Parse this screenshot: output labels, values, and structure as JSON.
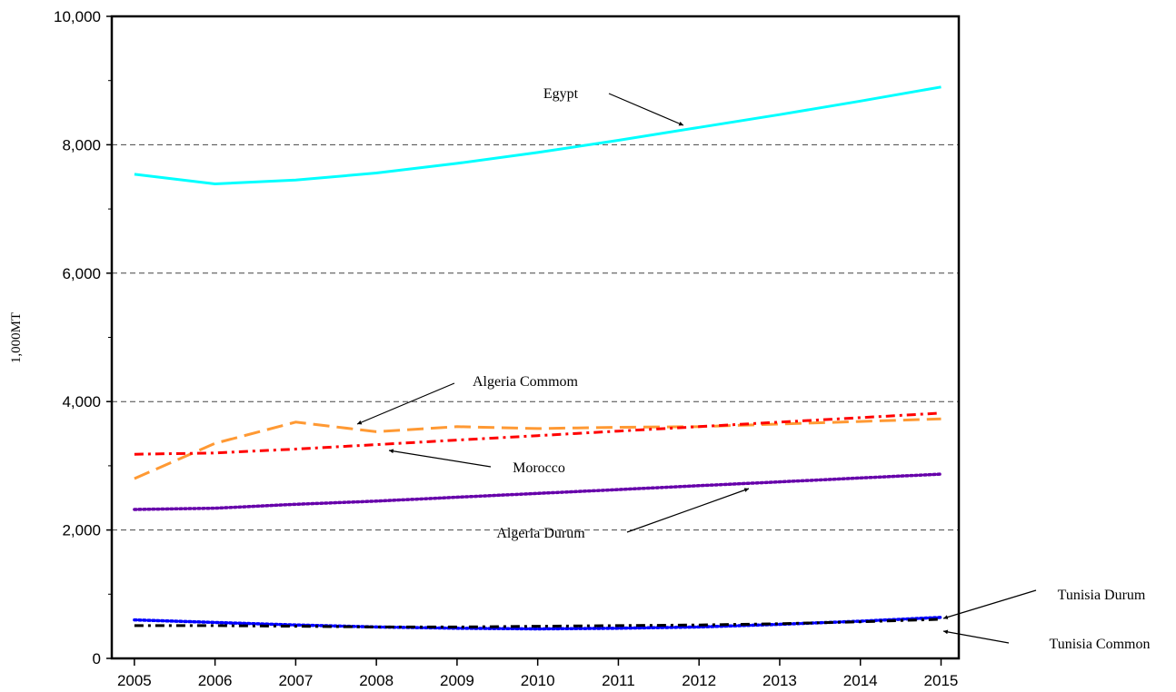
{
  "chart_data": {
    "type": "line",
    "y_label": "1,000MT",
    "x": [
      2005,
      2006,
      2007,
      2008,
      2009,
      2010,
      2011,
      2012,
      2013,
      2014,
      2015
    ],
    "xlim": [
      2004.72,
      2015.22
    ],
    "xticks": [
      2005,
      2006,
      2007,
      2008,
      2009,
      2010,
      2011,
      2012,
      2013,
      2014,
      2015
    ],
    "ylim": [
      0,
      10000
    ],
    "yticks": [
      0,
      {
        "value": 2000,
        "label": "2,000"
      },
      {
        "value": 4000,
        "label": "4,000"
      },
      {
        "value": 6000,
        "label": "6,000"
      },
      {
        "value": 8000,
        "label": "8,000"
      },
      {
        "value": 10000,
        "label": "10,000"
      }
    ],
    "yminorticks": [
      1000,
      3000,
      5000,
      7000,
      9000
    ],
    "grid": true,
    "series": [
      {
        "name": "Egypt",
        "color": "#00ffff",
        "style": "solid",
        "values": [
          7540,
          7390,
          7450,
          7560,
          7710,
          7880,
          8070,
          8270,
          8470,
          8680,
          8900
        ]
      },
      {
        "name": "Algeria Commom",
        "color": "#ff9933",
        "style": "dashed",
        "values": [
          2800,
          3350,
          3680,
          3530,
          3610,
          3580,
          3600,
          3610,
          3650,
          3690,
          3730
        ]
      },
      {
        "name": "Morocco",
        "color": "#ff0000",
        "style": "dashdot",
        "values": [
          3180,
          3200,
          3260,
          3330,
          3400,
          3470,
          3540,
          3610,
          3680,
          3750,
          3820
        ]
      },
      {
        "name": "Algeria Durum",
        "color": "#6600aa",
        "style": "dotted",
        "values": [
          2320,
          2340,
          2400,
          2450,
          2510,
          2570,
          2630,
          2690,
          2750,
          2810,
          2870
        ]
      },
      {
        "name": "Tunisia Durum",
        "color": "#0000ff",
        "style": "dotted",
        "values": [
          600,
          560,
          520,
          490,
          470,
          460,
          470,
          490,
          530,
          580,
          640
        ]
      },
      {
        "name": "Tunisia Common",
        "color": "#000000",
        "style": "dashdot",
        "values": [
          510,
          510,
          500,
          490,
          490,
          500,
          510,
          520,
          540,
          570,
          610
        ]
      }
    ]
  }
}
